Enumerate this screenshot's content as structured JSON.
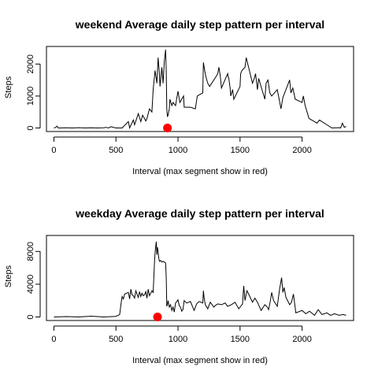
{
  "chart_data": [
    {
      "type": "line",
      "title": "weekend Average daily step pattern per interval",
      "xlabel": "Interval (max segment show in red)",
      "ylabel": "Steps",
      "xlim": [
        -60,
        2415
      ],
      "ylim": [
        -110,
        2550
      ],
      "xticks": [
        0,
        500,
        1000,
        1500,
        2000
      ],
      "xtick_labels": [
        "0",
        "500",
        "1000",
        "1500",
        "2000"
      ],
      "yticks": [
        0,
        1000,
        2000
      ],
      "ytick_labels": [
        "0",
        "1000",
        "2000"
      ],
      "line_color": "#000000",
      "max_marker": {
        "x": 915,
        "y": 0,
        "color": "#ff0000"
      },
      "series": [
        {
          "x": [
            0,
            15,
            25,
            35,
            50,
            100,
            150,
            200,
            250,
            300,
            350,
            400,
            420,
            440,
            460,
            500,
            550,
            600,
            610,
            640,
            650,
            680,
            700,
            715,
            740,
            750,
            770,
            790,
            800,
            815,
            830,
            840,
            850,
            855,
            860,
            870,
            880,
            890,
            900,
            905,
            910,
            915,
            920,
            930,
            935,
            950,
            960,
            980,
            1000,
            1015,
            1030,
            1045,
            1050,
            1100,
            1140,
            1155,
            1200,
            1205,
            1215,
            1225,
            1240,
            1255,
            1305,
            1320,
            1330,
            1340,
            1350,
            1400,
            1405,
            1410,
            1420,
            1425,
            1440,
            1450,
            1500,
            1505,
            1515,
            1540,
            1550,
            1600,
            1615,
            1625,
            1640,
            1650,
            1700,
            1710,
            1725,
            1740,
            1755,
            1800,
            1815,
            1830,
            1845,
            1900,
            1910,
            1925,
            1945,
            2000,
            2010,
            2025,
            2040,
            2055,
            2100,
            2120,
            2140,
            2200,
            2240,
            2300,
            2310,
            2325,
            2340,
            2355
          ],
          "y": [
            0,
            20,
            60,
            0,
            0,
            5,
            0,
            10,
            0,
            5,
            0,
            5,
            20,
            0,
            40,
            0,
            0,
            200,
            0,
            250,
            100,
            450,
            200,
            400,
            220,
            300,
            600,
            500,
            1200,
            1800,
            1400,
            2200,
            1700,
            1300,
            1500,
            1900,
            1400,
            2100,
            2450,
            1800,
            600,
            350,
            400,
            600,
            900,
            700,
            800,
            700,
            1150,
            800,
            900,
            1000,
            650,
            650,
            600,
            1000,
            1100,
            2050,
            1800,
            1600,
            1400,
            1300,
            1600,
            1700,
            1900,
            1650,
            1250,
            1700,
            1600,
            1550,
            1250,
            1000,
            1200,
            900,
            1300,
            1700,
            1800,
            1900,
            2200,
            1400,
            1550,
            1700,
            1200,
            1550,
            900,
            1400,
            1500,
            1100,
            1000,
            1200,
            900,
            600,
            950,
            1500,
            1100,
            1250,
            900,
            800,
            1000,
            700,
            500,
            300,
            200,
            150,
            250,
            100,
            0,
            10,
            0,
            150,
            20,
            50
          ]
        }
      ]
    },
    {
      "type": "line",
      "title": "weekday Average daily step pattern per interval",
      "xlabel": "Interval (max segment show in red)",
      "ylabel": "Steps",
      "xlim": [
        -60,
        2415
      ],
      "ylim": [
        -430,
        9950
      ],
      "xticks": [
        0,
        500,
        1000,
        1500,
        2000
      ],
      "xtick_labels": [
        "0",
        "500",
        "1000",
        "1500",
        "2000"
      ],
      "yticks": [
        0,
        4000,
        8000
      ],
      "ytick_labels": [
        "0",
        "4000",
        "8000"
      ],
      "line_color": "#000000",
      "max_marker": {
        "x": 835,
        "y": 0,
        "color": "#ff0000"
      },
      "series": [
        {
          "x": [
            0,
            100,
            200,
            300,
            400,
            500,
            530,
            540,
            550,
            560,
            570,
            600,
            610,
            620,
            630,
            640,
            650,
            660,
            670,
            680,
            690,
            700,
            710,
            720,
            730,
            740,
            750,
            760,
            770,
            780,
            790,
            800,
            810,
            815,
            820,
            825,
            830,
            835,
            840,
            845,
            850,
            860,
            870,
            880,
            890,
            900,
            905,
            910,
            915,
            920,
            930,
            940,
            950,
            960,
            970,
            980,
            990,
            1000,
            1010,
            1020,
            1030,
            1040,
            1050,
            1070,
            1100,
            1130,
            1150,
            1170,
            1200,
            1205,
            1210,
            1220,
            1240,
            1260,
            1290,
            1300,
            1320,
            1350,
            1380,
            1400,
            1430,
            1460,
            1490,
            1500,
            1520,
            1530,
            1540,
            1555,
            1570,
            1600,
            1620,
            1640,
            1670,
            1700,
            1720,
            1730,
            1745,
            1755,
            1770,
            1800,
            1820,
            1835,
            1845,
            1855,
            1870,
            1900,
            1915,
            1930,
            1950,
            2000,
            2030,
            2060,
            2100,
            2130,
            2160,
            2200,
            2230,
            2260,
            2300,
            2330,
            2355
          ],
          "y": [
            0,
            50,
            0,
            100,
            0,
            80,
            300,
            1500,
            2500,
            2200,
            2800,
            3000,
            2200,
            3400,
            2700,
            2600,
            2300,
            3200,
            2800,
            2400,
            3100,
            2500,
            2900,
            2600,
            2700,
            3100,
            2300,
            3400,
            2600,
            2900,
            3200,
            3000,
            6500,
            7800,
            8600,
            9200,
            7600,
            8500,
            7900,
            7200,
            6800,
            6900,
            6700,
            6800,
            6700,
            6600,
            4800,
            1300,
            1500,
            2000,
            1200,
            1500,
            800,
            1200,
            600,
            1700,
            1900,
            2100,
            1400,
            1200,
            700,
            900,
            2000,
            1700,
            1900,
            800,
            1600,
            1900,
            1700,
            3200,
            2400,
            1500,
            1000,
            1800,
            1200,
            1400,
            1600,
            1500,
            1700,
            1300,
            1500,
            1800,
            1000,
            1200,
            1600,
            3800,
            2000,
            3200,
            2800,
            1800,
            2300,
            1800,
            800,
            1500,
            1200,
            900,
            2000,
            3000,
            2000,
            1300,
            3500,
            4800,
            3000,
            3600,
            2400,
            1500,
            1800,
            2800,
            500,
            800,
            400,
            700,
            200,
            900,
            300,
            500,
            200,
            400,
            200,
            300,
            200
          ]
        }
      ]
    }
  ]
}
